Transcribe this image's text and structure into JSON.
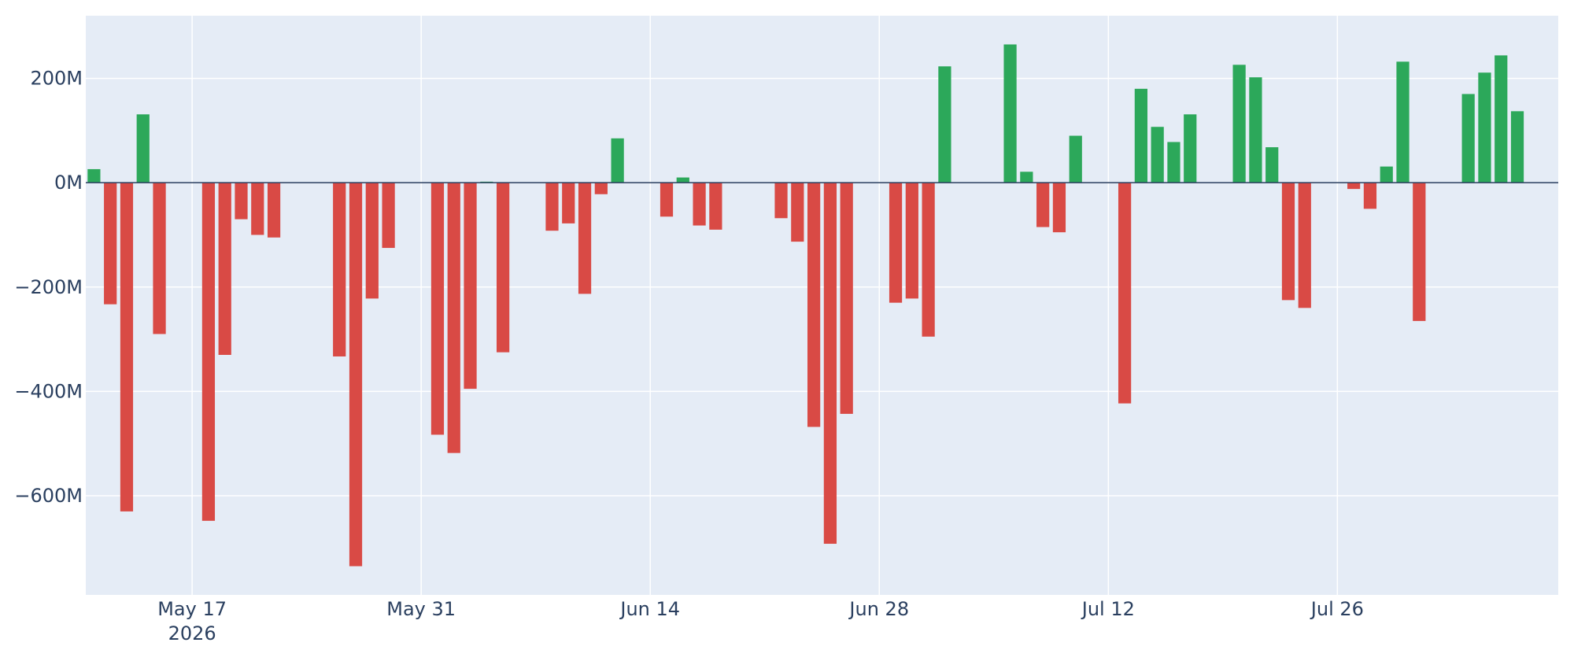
{
  "chart_data": {
    "type": "bar",
    "title": "",
    "xlabel": "",
    "ylabel": "",
    "x_start": "2026-05-11",
    "x_end": "2026-08-08",
    "ylim": [
      -790,
      320
    ],
    "y_ticks": [
      {
        "value": 200,
        "label": "200M"
      },
      {
        "value": 0,
        "label": "0M"
      },
      {
        "value": -200,
        "label": "−200M"
      },
      {
        "value": -400,
        "label": "−400M"
      },
      {
        "value": -600,
        "label": "−600M"
      }
    ],
    "x_ticks": [
      {
        "date": "2026-05-17",
        "label": "May 17",
        "sublabel": "2026"
      },
      {
        "date": "2026-05-31",
        "label": "May 31",
        "sublabel": ""
      },
      {
        "date": "2026-06-14",
        "label": "Jun 14",
        "sublabel": ""
      },
      {
        "date": "2026-06-28",
        "label": "Jun 28",
        "sublabel": ""
      },
      {
        "date": "2026-07-12",
        "label": "Jul 12",
        "sublabel": ""
      },
      {
        "date": "2026-07-26",
        "label": "Jul 26",
        "sublabel": ""
      }
    ],
    "colors": {
      "positive": "#2ca85a",
      "negative": "#d94a45",
      "plot_background": "#e5ecf6",
      "grid": "#ffffff",
      "zero_line": "#2a3f5f",
      "tick_text": "#2a3f5f"
    },
    "grid": true,
    "legend": "none",
    "series": [
      {
        "x": [
          "2026-05-11",
          "2026-05-12",
          "2026-05-13",
          "2026-05-14",
          "2026-05-15",
          "2026-05-18",
          "2026-05-19",
          "2026-05-20",
          "2026-05-21",
          "2026-05-22",
          "2026-05-26",
          "2026-05-27",
          "2026-05-28",
          "2026-05-29",
          "2026-06-01",
          "2026-06-02",
          "2026-06-03",
          "2026-06-04",
          "2026-06-05",
          "2026-06-08",
          "2026-06-09",
          "2026-06-10",
          "2026-06-11",
          "2026-06-12",
          "2026-06-15",
          "2026-06-16",
          "2026-06-17",
          "2026-06-18",
          "2026-06-22",
          "2026-06-23",
          "2026-06-24",
          "2026-06-25",
          "2026-06-26",
          "2026-06-29",
          "2026-06-30",
          "2026-07-01",
          "2026-07-02",
          "2026-07-06",
          "2026-07-07",
          "2026-07-08",
          "2026-07-09",
          "2026-07-10",
          "2026-07-13",
          "2026-07-14",
          "2026-07-15",
          "2026-07-16",
          "2026-07-17",
          "2026-07-20",
          "2026-07-21",
          "2026-07-22",
          "2026-07-23",
          "2026-07-24",
          "2026-07-27",
          "2026-07-28",
          "2026-07-29",
          "2026-07-30",
          "2026-07-31",
          "2026-08-03",
          "2026-08-04",
          "2026-08-05",
          "2026-08-06"
        ],
        "values": [
          26,
          -233,
          -630,
          131,
          -290,
          -648,
          -330,
          -70,
          -100,
          -105,
          -333,
          -735,
          -222,
          -125,
          -483,
          -518,
          -395,
          2,
          -325,
          -92,
          -78,
          -213,
          -22,
          85,
          -65,
          10,
          -82,
          -90,
          -68,
          -113,
          -468,
          -692,
          -443,
          -230,
          -222,
          -295,
          223,
          265,
          21,
          -85,
          -95,
          90,
          -423,
          180,
          107,
          78,
          131,
          226,
          202,
          68,
          -225,
          -240,
          -12,
          -50,
          31,
          232,
          -265,
          170,
          211,
          244,
          137
        ]
      }
    ]
  }
}
